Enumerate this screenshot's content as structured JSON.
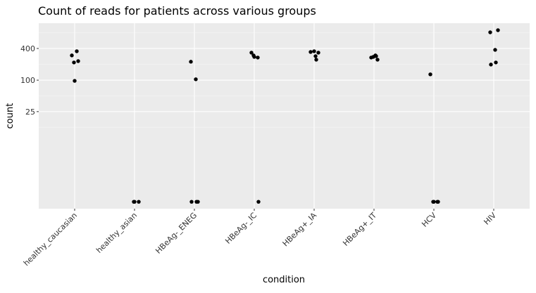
{
  "chart_data": {
    "type": "strip",
    "title": "Count of reads for patients across various groups",
    "x_label": "condition",
    "y_label": "count",
    "categories": [
      "healthy_caucasian",
      "healthy_asian",
      "HBeAg-_ENEG",
      "HBeAg-_IC",
      "HBeAg+_IA",
      "HBeAg+_IT",
      "HCV",
      "HIV"
    ],
    "values": [
      [
        354,
        295,
        230,
        217,
        97
      ],
      [
        0,
        0,
        0
      ],
      [
        224,
        104,
        0,
        0,
        0
      ],
      [
        333,
        269,
        295,
        277,
        0
      ],
      [
        354,
        333,
        343,
        286,
        245
      ],
      [
        295,
        286,
        269,
        245,
        277
      ],
      [
        0,
        0,
        0,
        0,
        129
      ],
      [
        887,
        809,
        376,
        217,
        198
      ]
    ],
    "color": "#000000",
    "yscale": "log",
    "ylog_offset": 0.5,
    "ylim": [
      -0.13,
      1205
    ],
    "yticks": [
      25,
      100,
      400
    ],
    "grid": true
  }
}
